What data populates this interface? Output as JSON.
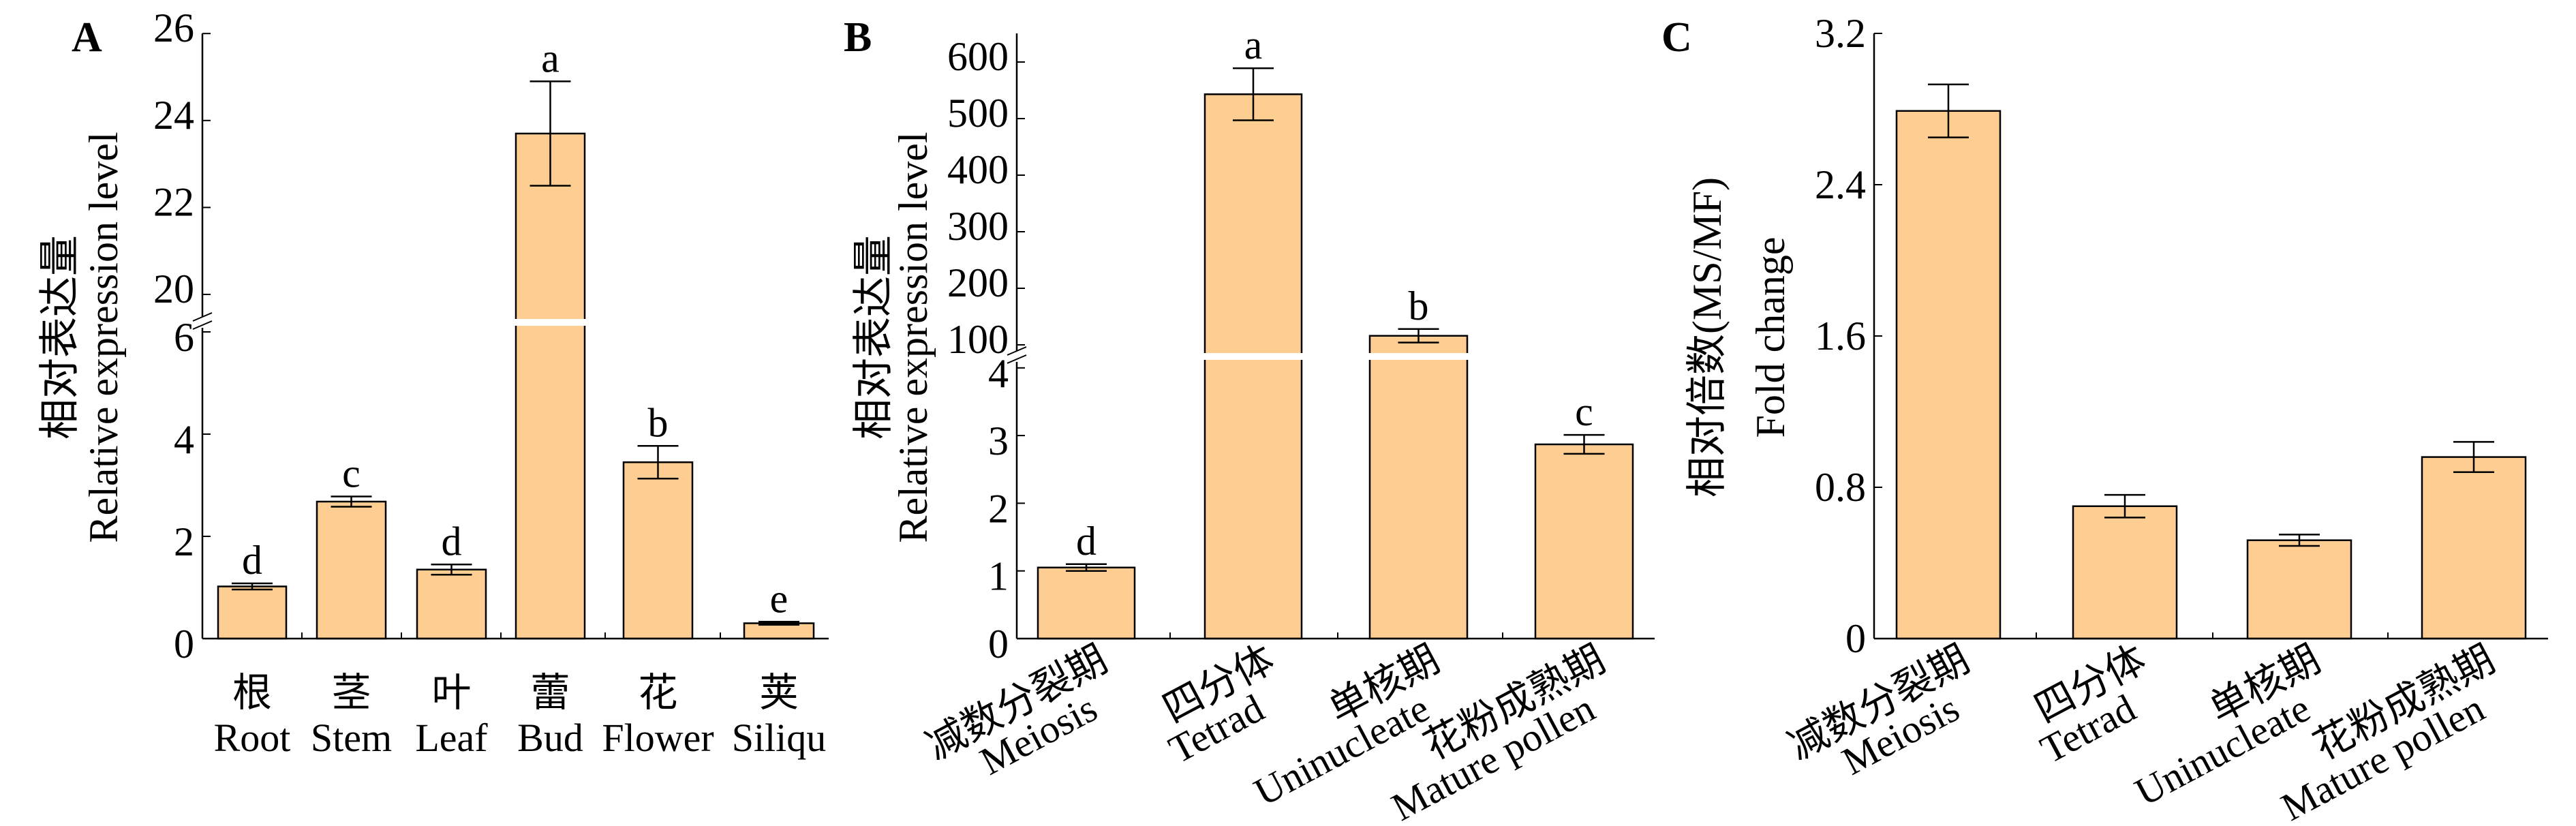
{
  "colors": {
    "bar": "#FDCD92",
    "stroke": "#000000"
  },
  "chart_data": [
    {
      "panel": "A",
      "type": "bar",
      "ylabel_cn": "相对表达量",
      "ylabel": "Relative expression level",
      "categories": [
        {
          "cn": "根",
          "en": "Root"
        },
        {
          "cn": "茎",
          "en": "Stem"
        },
        {
          "cn": "叶",
          "en": "Leaf"
        },
        {
          "cn": "蕾",
          "en": "Bud"
        },
        {
          "cn": "花",
          "en": "Flower"
        },
        {
          "cn": "荚",
          "en": "Siliqu"
        }
      ],
      "values": [
        1.02,
        2.68,
        1.35,
        23.7,
        3.45,
        0.3
      ],
      "errors": [
        0.06,
        0.1,
        0.1,
        1.2,
        0.32,
        0.03
      ],
      "significance": [
        "d",
        "c",
        "d",
        "a",
        "b",
        "e"
      ],
      "yticks_lower": [
        "0",
        "2",
        "4",
        "6"
      ],
      "yticks_upper": [
        "20",
        "22",
        "24",
        "26"
      ],
      "axis_break": true
    },
    {
      "panel": "B",
      "type": "bar",
      "ylabel_cn": "相对表达量",
      "ylabel": "Relative expression level",
      "categories": [
        {
          "cn": "减数分裂期",
          "en": "Meiosis"
        },
        {
          "cn": "四分体",
          "en": "Tetrad"
        },
        {
          "cn": "单核期",
          "en": "Uninucleate"
        },
        {
          "cn": "花粉成熟期",
          "en": "Mature pollen"
        }
      ],
      "values": [
        1.05,
        543,
        116,
        2.87
      ],
      "errors": [
        0.05,
        46,
        12,
        0.14
      ],
      "significance": [
        "d",
        "a",
        "b",
        "c"
      ],
      "yticks_lower": [
        "0",
        "1",
        "2",
        "3",
        "4"
      ],
      "yticks_upper": [
        "100",
        "200",
        "300",
        "400",
        "500",
        "600"
      ],
      "axis_break": true
    },
    {
      "panel": "C",
      "type": "bar",
      "ylabel_cn": "相对倍数(MS/MF)",
      "ylabel": "Fold change",
      "categories": [
        {
          "cn": "减数分裂期",
          "en": "Meiosis"
        },
        {
          "cn": "四分体",
          "en": "Tetrad"
        },
        {
          "cn": "单核期",
          "en": "Uninucleate"
        },
        {
          "cn": "花粉成熟期",
          "en": "Mature pollen"
        }
      ],
      "values": [
        2.79,
        0.7,
        0.52,
        0.96
      ],
      "errors": [
        0.14,
        0.06,
        0.03,
        0.08
      ],
      "significance": [
        "",
        "",
        "",
        ""
      ],
      "yticks": [
        "0",
        "0.8",
        "1.6",
        "2.4",
        "3.2"
      ],
      "ylim": [
        0,
        3.2
      ],
      "axis_break": false
    }
  ]
}
